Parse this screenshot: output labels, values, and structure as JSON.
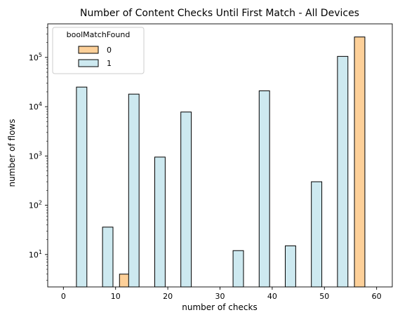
{
  "chart_data": {
    "type": "bar",
    "title": "Number of Content Checks Until First Match - All Devices",
    "xlabel": "number of checks",
    "ylabel": "number of flows",
    "xlim": [
      -3,
      63
    ],
    "ylim": [
      2.2,
      480000
    ],
    "yscale": "log",
    "grid": false,
    "x_ticks": [
      0,
      10,
      20,
      30,
      40,
      50,
      60
    ],
    "x_tick_labels": [
      "0",
      "10",
      "20",
      "30",
      "40",
      "50",
      "60"
    ],
    "y_ticks": [
      10,
      100,
      1000,
      10000,
      100000
    ],
    "y_tick_labels": [
      {
        "base": "10",
        "exp": "1"
      },
      {
        "base": "10",
        "exp": "2"
      },
      {
        "base": "10",
        "exp": "3"
      },
      {
        "base": "10",
        "exp": "4"
      },
      {
        "base": "10",
        "exp": "5"
      }
    ],
    "legend": {
      "title": "boolMatchFound",
      "placement": "top-left",
      "entries": [
        "0",
        "1"
      ]
    },
    "series": [
      {
        "name": "0",
        "color": "#fdd099",
        "bars": [
          {
            "x0": 10.75,
            "x1": 12.75,
            "value": 4
          },
          {
            "x0": 55.75,
            "x1": 57.75,
            "value": 260000
          }
        ]
      },
      {
        "name": "1",
        "color": "#cde9f0",
        "bars": [
          {
            "x0": 2.5,
            "x1": 4.5,
            "value": 25000
          },
          {
            "x0": 7.5,
            "x1": 9.5,
            "value": 36
          },
          {
            "x0": 12.5,
            "x1": 14.5,
            "value": 18000
          },
          {
            "x0": 17.5,
            "x1": 19.5,
            "value": 950
          },
          {
            "x0": 22.5,
            "x1": 24.5,
            "value": 7800
          },
          {
            "x0": 32.5,
            "x1": 34.5,
            "value": 12
          },
          {
            "x0": 37.5,
            "x1": 39.5,
            "value": 21000
          },
          {
            "x0": 42.5,
            "x1": 44.5,
            "value": 15
          },
          {
            "x0": 47.5,
            "x1": 49.5,
            "value": 300
          },
          {
            "x0": 52.5,
            "x1": 54.5,
            "value": 105000
          }
        ]
      }
    ]
  }
}
